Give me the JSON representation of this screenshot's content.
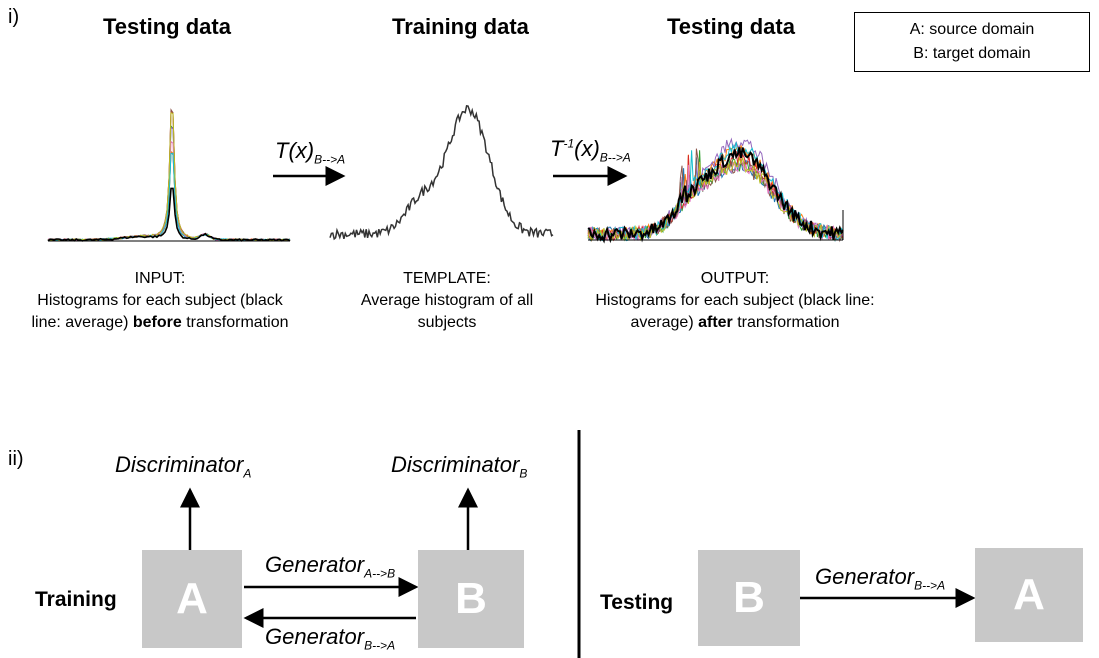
{
  "part_i": {
    "label": "i)",
    "headers": {
      "left": "Testing data",
      "middle": "Training data",
      "right": "Testing data"
    },
    "legend": {
      "line1": "A: source domain",
      "line2": "B: target domain"
    },
    "arrow1": {
      "main": "T(x)",
      "sub": "B-->A"
    },
    "arrow2": {
      "main": "T",
      "sup": "-1",
      "main2": "(x)",
      "sub": "B-->A"
    },
    "captions": {
      "input": {
        "title": "INPUT:",
        "line1": "Histograms for each subject (black",
        "line2_pre": "line: average) ",
        "line2_bold": "before",
        "line2_post": " transformation"
      },
      "template": {
        "title": "TEMPLATE:",
        "line1": "Average histogram of all",
        "line2": "subjects"
      },
      "output": {
        "title": "OUTPUT:",
        "line1": "Histograms for each subject (black line:",
        "line2_pre": "average) ",
        "line2_bold": "after",
        "line2_post": " transformation"
      }
    },
    "series_colors": [
      "#1f77b4",
      "#ff7f0e",
      "#2ca02c",
      "#d62728",
      "#9467bd",
      "#8c564b",
      "#e377c2",
      "#17becf",
      "#bcbd22",
      "#000000"
    ]
  },
  "part_ii": {
    "label": "ii)",
    "training": {
      "label": "Training",
      "box_a": "A",
      "box_b": "B",
      "disc_a": {
        "main": "Discriminator",
        "sub": "A"
      },
      "disc_b": {
        "main": "Discriminator",
        "sub": "B"
      },
      "gen_ab": {
        "main": "Generator",
        "sub": "A-->B"
      },
      "gen_ba": {
        "main": "Generator",
        "sub": "B-->A"
      }
    },
    "testing": {
      "label": "Testing",
      "box_b": "B",
      "box_a": "A",
      "gen_ba": {
        "main": "Generator",
        "sub": "B-->A"
      }
    }
  }
}
